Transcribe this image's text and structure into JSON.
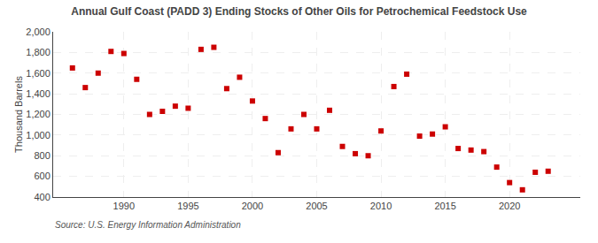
{
  "chart_data": {
    "type": "scatter",
    "title": "Annual Gulf Coast (PADD 3) Ending Stocks of Other Oils for Petrochemical Feedstock Use",
    "ylabel": "Thousand Barrels",
    "annotations": [
      "Source: U.S. Energy Information Administration"
    ],
    "x": [
      1986,
      1987,
      1988,
      1989,
      1990,
      1991,
      1992,
      1993,
      1994,
      1995,
      1996,
      1997,
      1998,
      1999,
      2000,
      2001,
      2002,
      2003,
      2004,
      2005,
      2006,
      2007,
      2008,
      2009,
      2010,
      2011,
      2012,
      2013,
      2014,
      2015,
      2016,
      2017,
      2018,
      2019,
      2020,
      2021,
      2022,
      2023
    ],
    "values": [
      1650,
      1460,
      1600,
      1810,
      1790,
      1540,
      1200,
      1230,
      1280,
      1260,
      1830,
      1850,
      1450,
      1560,
      1330,
      1160,
      830,
      1060,
      1200,
      1060,
      1240,
      890,
      820,
      800,
      1040,
      1470,
      1590,
      990,
      1010,
      1080,
      870,
      855,
      840,
      690,
      540,
      470,
      640,
      650
    ],
    "color": "#cc0000",
    "marker": "square",
    "xlim": [
      1984.5,
      2025.5
    ],
    "xticks": [
      1990,
      1995,
      2000,
      2005,
      2010,
      2015,
      2020
    ],
    "ylim": [
      400,
      2000
    ],
    "yticks": [
      400,
      600,
      800,
      {
        "value": 1000,
        "label": "1,000"
      },
      {
        "value": 1200,
        "label": "1,200"
      },
      {
        "value": 1400,
        "label": "1,400"
      },
      {
        "value": 1600,
        "label": "1,600"
      },
      {
        "value": 1800,
        "label": "1,800"
      },
      {
        "value": 2000,
        "label": "2,000"
      }
    ],
    "grid": true
  }
}
